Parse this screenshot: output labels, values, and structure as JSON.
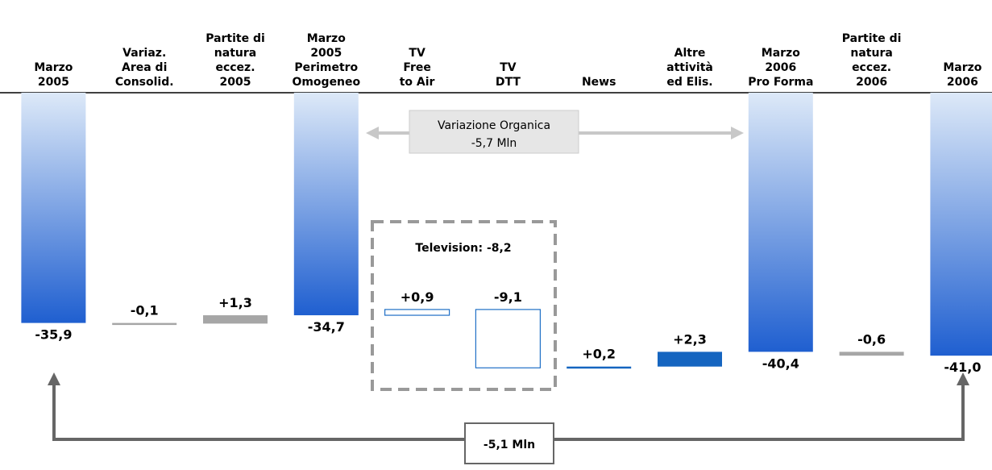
{
  "chart_data": {
    "type": "waterfall",
    "categories": [
      [
        "Marzo",
        "2005"
      ],
      [
        "Variaz.",
        "Area di",
        "Consolid."
      ],
      [
        "Partite di",
        "natura",
        "eccez.",
        "2005"
      ],
      [
        "Marzo",
        "2005",
        "Perimetro",
        "Omogeneo"
      ],
      [
        "TV",
        "Free",
        "to Air"
      ],
      [
        "TV",
        "DTT"
      ],
      [
        "News"
      ],
      [
        "Altre",
        "attività",
        "ed Elis."
      ],
      [
        "Marzo",
        "2006",
        "Pro Forma"
      ],
      [
        "Partite di",
        "natura",
        "eccez.",
        "2006"
      ],
      [
        "Marzo",
        "2006"
      ]
    ],
    "values": [
      -35.9,
      -0.1,
      1.3,
      -34.7,
      0.9,
      -9.1,
      0.2,
      2.3,
      -40.4,
      -0.6,
      -41.0
    ],
    "value_labels": [
      "-35,9",
      "-0,1",
      "+1,3",
      "-34,7",
      "+0,9",
      "-9,1",
      "+0,2",
      "+2,3",
      "-40,4",
      "-0,6",
      "-41,0"
    ],
    "totals": [
      true,
      false,
      false,
      true,
      false,
      false,
      false,
      false,
      true,
      false,
      true
    ],
    "colors": [
      "#1f5fd0",
      "#a6a6a6",
      "#a6a6a6",
      "#1f5fd0",
      "#1f6fc6",
      "#1f6fc6",
      "#1565c0",
      "#1565c0",
      "#1f5fd0",
      "#a6a6a6",
      "#1f5fd0"
    ],
    "outlined": [
      false,
      false,
      false,
      false,
      true,
      true,
      false,
      false,
      false,
      false,
      false
    ],
    "ylim": [
      -45,
      0
    ],
    "annotations": {
      "organic_title": "Variazione Organica",
      "organic_value": "-5,7 Mln",
      "television": "Television: -8,2",
      "total_change": "-5,1 Mln"
    }
  }
}
